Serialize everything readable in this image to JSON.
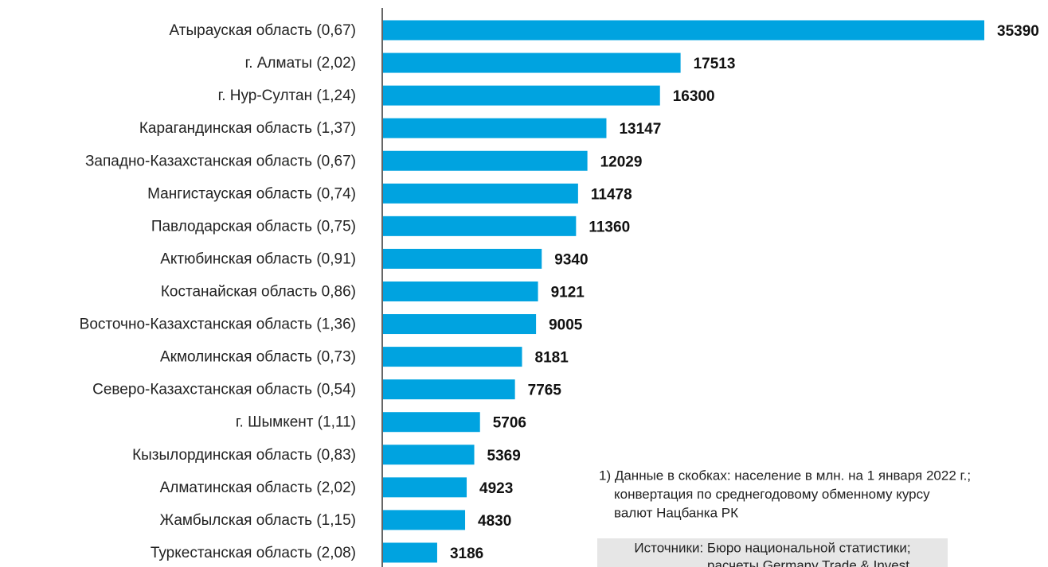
{
  "chart_data": {
    "type": "bar",
    "orientation": "horizontal",
    "categories": [
      "Атырауская область (0,67)",
      "г. Алматы (2,02)",
      "г. Нур-Султан (1,24)",
      "Карагандинская область (1,37)",
      "Западно-Казахстанская область (0,67)",
      "Мангистауская область (0,74)",
      "Павлодарская область (0,75)",
      "Актюбинская область (0,91)",
      "Костанайская область 0,86)",
      "Восточно-Казахстанская область (1,36)",
      "Акмолинская область (0,73)",
      "Северо-Казахстанская область (0,54)",
      "г. Шымкент (1,11)",
      "Кызылординская область (0,83)",
      "Алматинская область (2,02)",
      "Жамбылская область (1,15)",
      "Туркестанская область (2,08)"
    ],
    "values": [
      35390,
      17513,
      16300,
      13147,
      12029,
      11478,
      11360,
      9340,
      9121,
      9005,
      8181,
      7765,
      5706,
      5369,
      4923,
      4830,
      3186
    ],
    "color": "#00a3e0",
    "note": [
      "1) Данные в скобках: население в млн. на 1 января 2022 г.;",
      "конвертация по среднегодовому обменному курсу",
      "валют Нацбанка РК"
    ],
    "source": [
      "Источники: Бюро национальной статистики;",
      "расчеты Germany Trade & Invest"
    ]
  }
}
